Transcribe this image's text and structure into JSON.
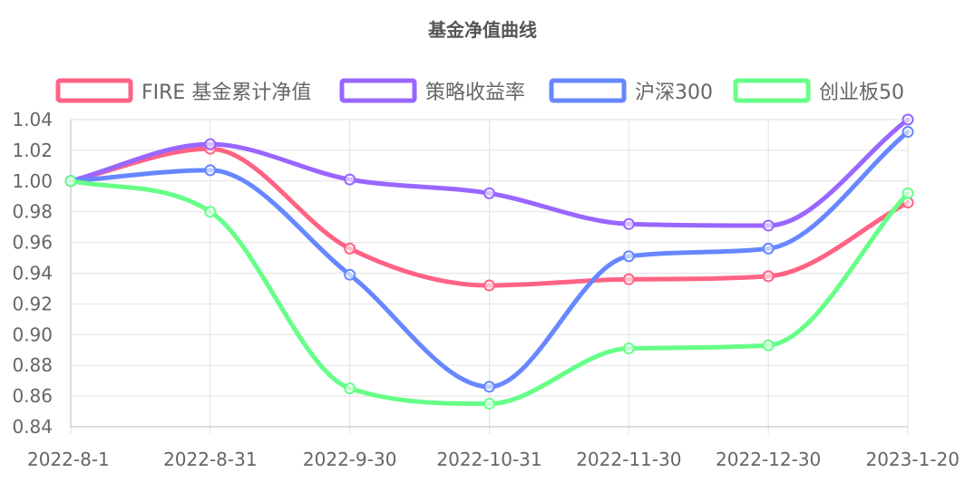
{
  "chart_data": {
    "type": "line",
    "title": "基金净值曲线",
    "x": [
      "2022-8-1",
      "2022-8-31",
      "2022-9-30",
      "2022-10-31",
      "2022-11-30",
      "2022-12-30",
      "2023-1-20"
    ],
    "series": [
      {
        "name": "FIRE 基金累计净值",
        "color": "#ff6384",
        "values": [
          1.0,
          1.021,
          0.956,
          0.932,
          0.936,
          0.938,
          0.986
        ]
      },
      {
        "name": "策略收益率",
        "color": "#9966ff",
        "values": [
          1.0,
          1.024,
          1.001,
          0.992,
          0.972,
          0.971,
          1.04
        ]
      },
      {
        "name": "沪深300",
        "color": "#6687ff",
        "values": [
          1.0,
          1.007,
          0.939,
          0.866,
          0.951,
          0.956,
          1.032
        ]
      },
      {
        "name": "创业板50",
        "color": "#66ff88",
        "values": [
          1.0,
          0.98,
          0.865,
          0.855,
          0.891,
          0.893,
          0.992
        ]
      }
    ],
    "ylim": [
      0.84,
      1.04
    ],
    "yticks": [
      "1.04",
      "1.02",
      "1.00",
      "0.98",
      "0.96",
      "0.94",
      "0.92",
      "0.90",
      "0.88",
      "0.86",
      "0.84"
    ],
    "grid": true,
    "legend_position": "top"
  }
}
